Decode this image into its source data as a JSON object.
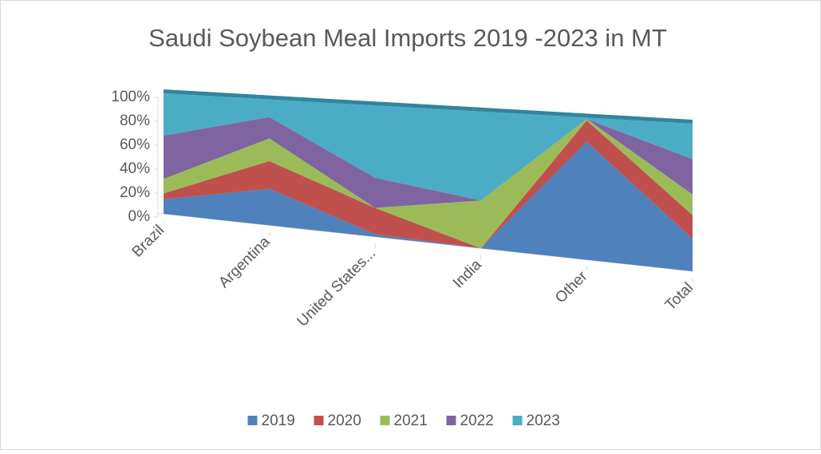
{
  "chart_data": {
    "type": "area3d_percent",
    "title": "Saudi Soybean Meal Imports 2019 -2023 in MT",
    "categories": [
      "Brazil",
      "Argentina",
      "United States...",
      "India",
      "Other",
      "Total"
    ],
    "series": [
      {
        "name": "2019",
        "color": "#4f81bd",
        "values": [
          12,
          29,
          2,
          0,
          83,
          22
        ]
      },
      {
        "name": "2020",
        "color": "#c0504d",
        "values": [
          5,
          22,
          20,
          0,
          15,
          16
        ]
      },
      {
        "name": "2021",
        "color": "#9bbb59",
        "values": [
          12,
          18,
          0,
          35,
          1,
          14
        ]
      },
      {
        "name": "2022",
        "color": "#8064a2",
        "values": [
          36,
          17,
          23,
          0,
          0,
          24
        ]
      },
      {
        "name": "2023",
        "color": "#4bacc6",
        "values": [
          35,
          14,
          55,
          65,
          1,
          24
        ]
      }
    ],
    "ylim": [
      0,
      100
    ],
    "yticks": [
      {
        "value": 0,
        "label": "0%"
      },
      {
        "value": 20,
        "label": "20%"
      },
      {
        "value": 40,
        "label": "40%"
      },
      {
        "value": 60,
        "label": "60%"
      },
      {
        "value": 80,
        "label": "80%"
      },
      {
        "value": 100,
        "label": "100%"
      }
    ],
    "legend": "bottom"
  }
}
